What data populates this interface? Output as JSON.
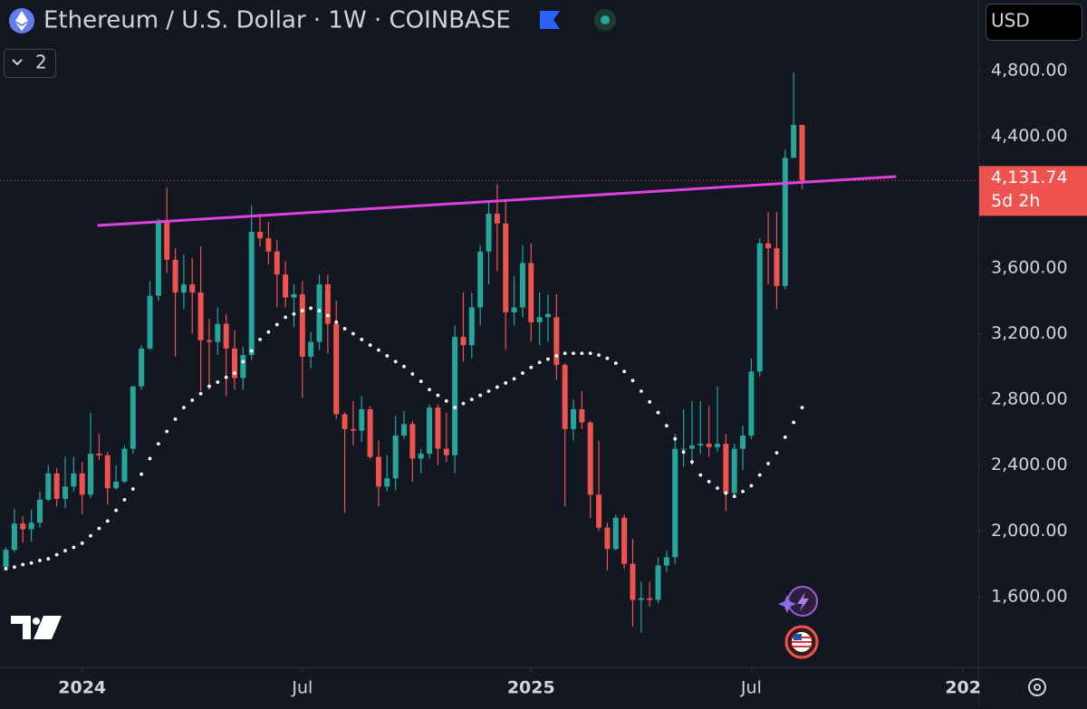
{
  "header": {
    "title": "Ethereum / U.S. Dollar · 1W · COINBASE",
    "indicator_count": "2",
    "currency": "USD"
  },
  "chart_data": {
    "type": "candlestick",
    "open": [
      1780,
      1885,
      2045,
      2010,
      2050,
      2190,
      2350,
      2195,
      2270,
      2350,
      2220,
      2470,
      2460,
      2260,
      2300,
      2500,
      2880,
      3110,
      3430,
      3880,
      3650,
      3450,
      3500,
      3450,
      3160,
      3150,
      3260,
      3110,
      2930,
      3070,
      3820,
      3780,
      3700,
      3560,
      3420,
      3440,
      3060,
      3150,
      3500,
      3260,
      2710,
      2620,
      2610,
      2740,
      2450,
      2270,
      2320,
      2580,
      2650,
      2440,
      2470,
      2750,
      2500,
      2460,
      3180,
      3130,
      3360,
      3700,
      3930,
      3870,
      3330,
      3360,
      3630,
      3270,
      3300,
      3300,
      3010,
      2620,
      2740,
      2660,
      2220,
      2020,
      1890,
      2080,
      1800,
      1580,
      1590,
      1580,
      1790,
      1840,
      2500,
      2500,
      2520,
      2530,
      2510,
      2530,
      2230,
      2500,
      2580,
      2970,
      3750,
      3720,
      3490,
      4270,
      4470
    ],
    "high": [
      1900,
      2135,
      2090,
      2130,
      2240,
      2400,
      2380,
      2450,
      2450,
      2420,
      2720,
      2590,
      2480,
      2400,
      2520,
      2880,
      3130,
      3520,
      3900,
      4090,
      3720,
      3680,
      3660,
      3730,
      3290,
      3360,
      3320,
      3220,
      3120,
      3980,
      3930,
      3880,
      3770,
      3640,
      3500,
      3520,
      3210,
      3560,
      3560,
      3400,
      2720,
      2790,
      2820,
      2760,
      2550,
      2460,
      2700,
      2730,
      2670,
      2500,
      2770,
      2770,
      2720,
      3250,
      3450,
      3450,
      3740,
      4000,
      4110,
      4020,
      3550,
      3740,
      3750,
      3450,
      3440,
      3440,
      3020,
      2800,
      2850,
      2670,
      2550,
      2050,
      2100,
      2100,
      1950,
      1690,
      1690,
      1840,
      1880,
      2590,
      2740,
      2790,
      2790,
      2760,
      2880,
      2590,
      2530,
      2640,
      3050,
      3780,
      3940,
      3940,
      4320,
      4790,
      4470
    ],
    "low": [
      1760,
      1870,
      1930,
      1935,
      2020,
      2180,
      2150,
      2140,
      2240,
      2100,
      2200,
      2430,
      2160,
      2250,
      2290,
      2470,
      2860,
      3100,
      3400,
      3570,
      3060,
      3350,
      3200,
      2850,
      2860,
      3070,
      2820,
      2860,
      2860,
      3040,
      3730,
      3620,
      3360,
      3360,
      3240,
      2810,
      2990,
      3100,
      3080,
      2680,
      2110,
      2520,
      2540,
      2440,
      2150,
      2240,
      2250,
      2560,
      2300,
      2350,
      2440,
      2400,
      2420,
      2350,
      3030,
      3050,
      3250,
      3500,
      3580,
      3100,
      3250,
      3300,
      3150,
      3130,
      3150,
      2920,
      2150,
      2550,
      2620,
      2080,
      2000,
      1760,
      1880,
      1770,
      1420,
      1380,
      1540,
      1560,
      1750,
      1800,
      2390,
      2400,
      2470,
      2450,
      2480,
      2120,
      2200,
      2370,
      2560,
      2940,
      3500,
      3350,
      3470,
      4270,
      4080
    ],
    "close": [
      1885,
      2045,
      2010,
      2050,
      2190,
      2350,
      2195,
      2270,
      2350,
      2220,
      2470,
      2460,
      2260,
      2300,
      2500,
      2880,
      3110,
      3430,
      3880,
      3650,
      3450,
      3500,
      3450,
      3160,
      3150,
      3260,
      3110,
      2930,
      3070,
      3820,
      3780,
      3700,
      3560,
      3420,
      3440,
      3060,
      3150,
      3500,
      3260,
      2710,
      2620,
      2610,
      2740,
      2450,
      2270,
      2320,
      2580,
      2650,
      2440,
      2470,
      2750,
      2500,
      2460,
      3180,
      3130,
      3360,
      3700,
      3930,
      3870,
      3330,
      3360,
      3630,
      3270,
      3300,
      3320,
      3010,
      2620,
      2740,
      2660,
      2220,
      2020,
      1890,
      2080,
      1800,
      1580,
      1590,
      1580,
      1790,
      1840,
      2500,
      2500,
      2520,
      2530,
      2510,
      2530,
      2230,
      2500,
      2580,
      2970,
      3750,
      3720,
      3490,
      4270,
      4470,
      4131.74
    ],
    "up_color": "#26a69a",
    "down_color": "#ef5350",
    "ma": {
      "color": "#ffffff",
      "values": [
        1770,
        1780,
        1795,
        1805,
        1820,
        1830,
        1855,
        1880,
        1900,
        1925,
        1970,
        2015,
        2060,
        2125,
        2190,
        2255,
        2345,
        2440,
        2530,
        2605,
        2680,
        2750,
        2795,
        2835,
        2880,
        2905,
        2935,
        2960,
        3030,
        3095,
        3165,
        3210,
        3255,
        3300,
        3320,
        3340,
        3355,
        3340,
        3310,
        3270,
        3230,
        3200,
        3165,
        3130,
        3100,
        3065,
        3030,
        3000,
        2955,
        2910,
        2860,
        2825,
        2790,
        2750,
        2775,
        2800,
        2825,
        2850,
        2875,
        2900,
        2925,
        2960,
        2995,
        3025,
        3045,
        3065,
        3080,
        3080,
        3080,
        3080,
        3070,
        3050,
        3020,
        2970,
        2915,
        2850,
        2785,
        2720,
        2640,
        2560,
        2480,
        2420,
        2340,
        2300,
        2260,
        2230,
        2210,
        2240,
        2275,
        2340,
        2410,
        2475,
        2570,
        2660,
        2750
      ]
    },
    "trendline": {
      "color": "#e040e0",
      "x": [
        10.8,
        105.1
      ],
      "y": [
        3858,
        4156
      ]
    },
    "last_price": {
      "value": 4131.74,
      "label": "4,131.74",
      "countdown": "5d 2h",
      "color": "#ef5350"
    },
    "xlim": [
      -0.7,
      114.8
    ],
    "xticks": [
      {
        "value": 9,
        "label": "2024"
      },
      {
        "value": 35,
        "label": "Jul"
      },
      {
        "value": 62,
        "label": "2025"
      },
      {
        "value": 88,
        "label": "Jul"
      },
      {
        "value": 113,
        "label": "202"
      }
    ],
    "ylim": [
      1170,
      5230
    ],
    "yticks": [
      {
        "value": 1600,
        "label": "1,600.00"
      },
      {
        "value": 2000,
        "label": "2,000.00"
      },
      {
        "value": 2400,
        "label": "2,400.00"
      },
      {
        "value": 2800,
        "label": "2,800.00"
      },
      {
        "value": 3200,
        "label": "3,200.00"
      },
      {
        "value": 3600,
        "label": "3,600.00"
      },
      {
        "value": 4400,
        "label": "4,400.00"
      },
      {
        "value": 4800,
        "label": "4,800.00"
      }
    ]
  }
}
